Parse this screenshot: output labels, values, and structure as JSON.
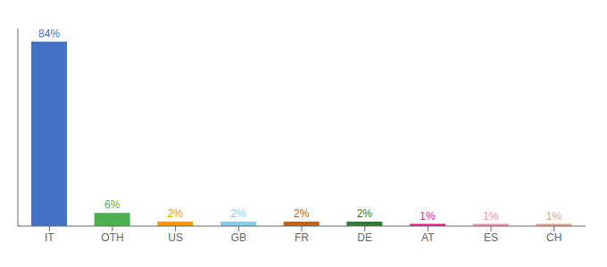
{
  "chart_data": {
    "type": "bar",
    "categories": [
      "IT",
      "OTH",
      "US",
      "GB",
      "FR",
      "DE",
      "AT",
      "ES",
      "CH"
    ],
    "values": [
      84,
      6,
      2,
      2,
      2,
      2,
      1,
      1,
      1
    ],
    "value_labels": [
      "84%",
      "6%",
      "2%",
      "2%",
      "2%",
      "2%",
      "1%",
      "1%",
      "1%"
    ],
    "colors": [
      "#4472c4",
      "#4caf50",
      "#ff9800",
      "#87ceeb",
      "#b5651d",
      "#2e7d32",
      "#e91e8c",
      "#f48fb1",
      "#e8a090"
    ],
    "ylim": [
      0,
      90
    ],
    "data_labels": true,
    "tick_labels": "x",
    "grid": false
  }
}
